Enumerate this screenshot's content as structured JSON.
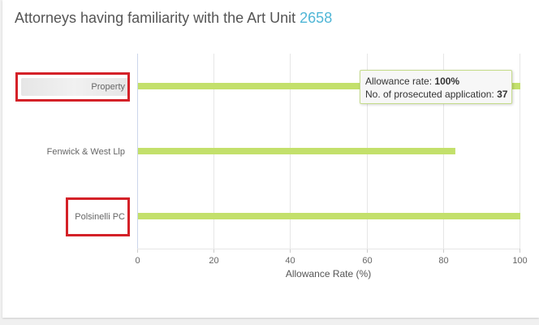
{
  "header": {
    "title": "Attorneys having familiarity with the Art Unit",
    "art_unit": "2658"
  },
  "tooltip": {
    "rate_label": "Allowance rate:",
    "rate_value": "100%",
    "count_label": "No. of prosecuted application:",
    "count_value": "37"
  },
  "colors": {
    "bar": "#c3e06b",
    "accent": "#4fb6d6",
    "highlight": "#d42128"
  },
  "chart_data": {
    "type": "bar",
    "orientation": "horizontal",
    "categories": [
      "Property",
      "Fenwick & West Llp",
      "Polsinelli PC"
    ],
    "values": [
      100,
      83,
      100
    ],
    "xlabel": "Allowance Rate (%)",
    "xlim": [
      0,
      100
    ],
    "xticks": [
      0,
      20,
      40,
      60,
      80,
      100
    ],
    "grid": true,
    "highlighted": [
      "Property",
      "Polsinelli PC"
    ]
  }
}
